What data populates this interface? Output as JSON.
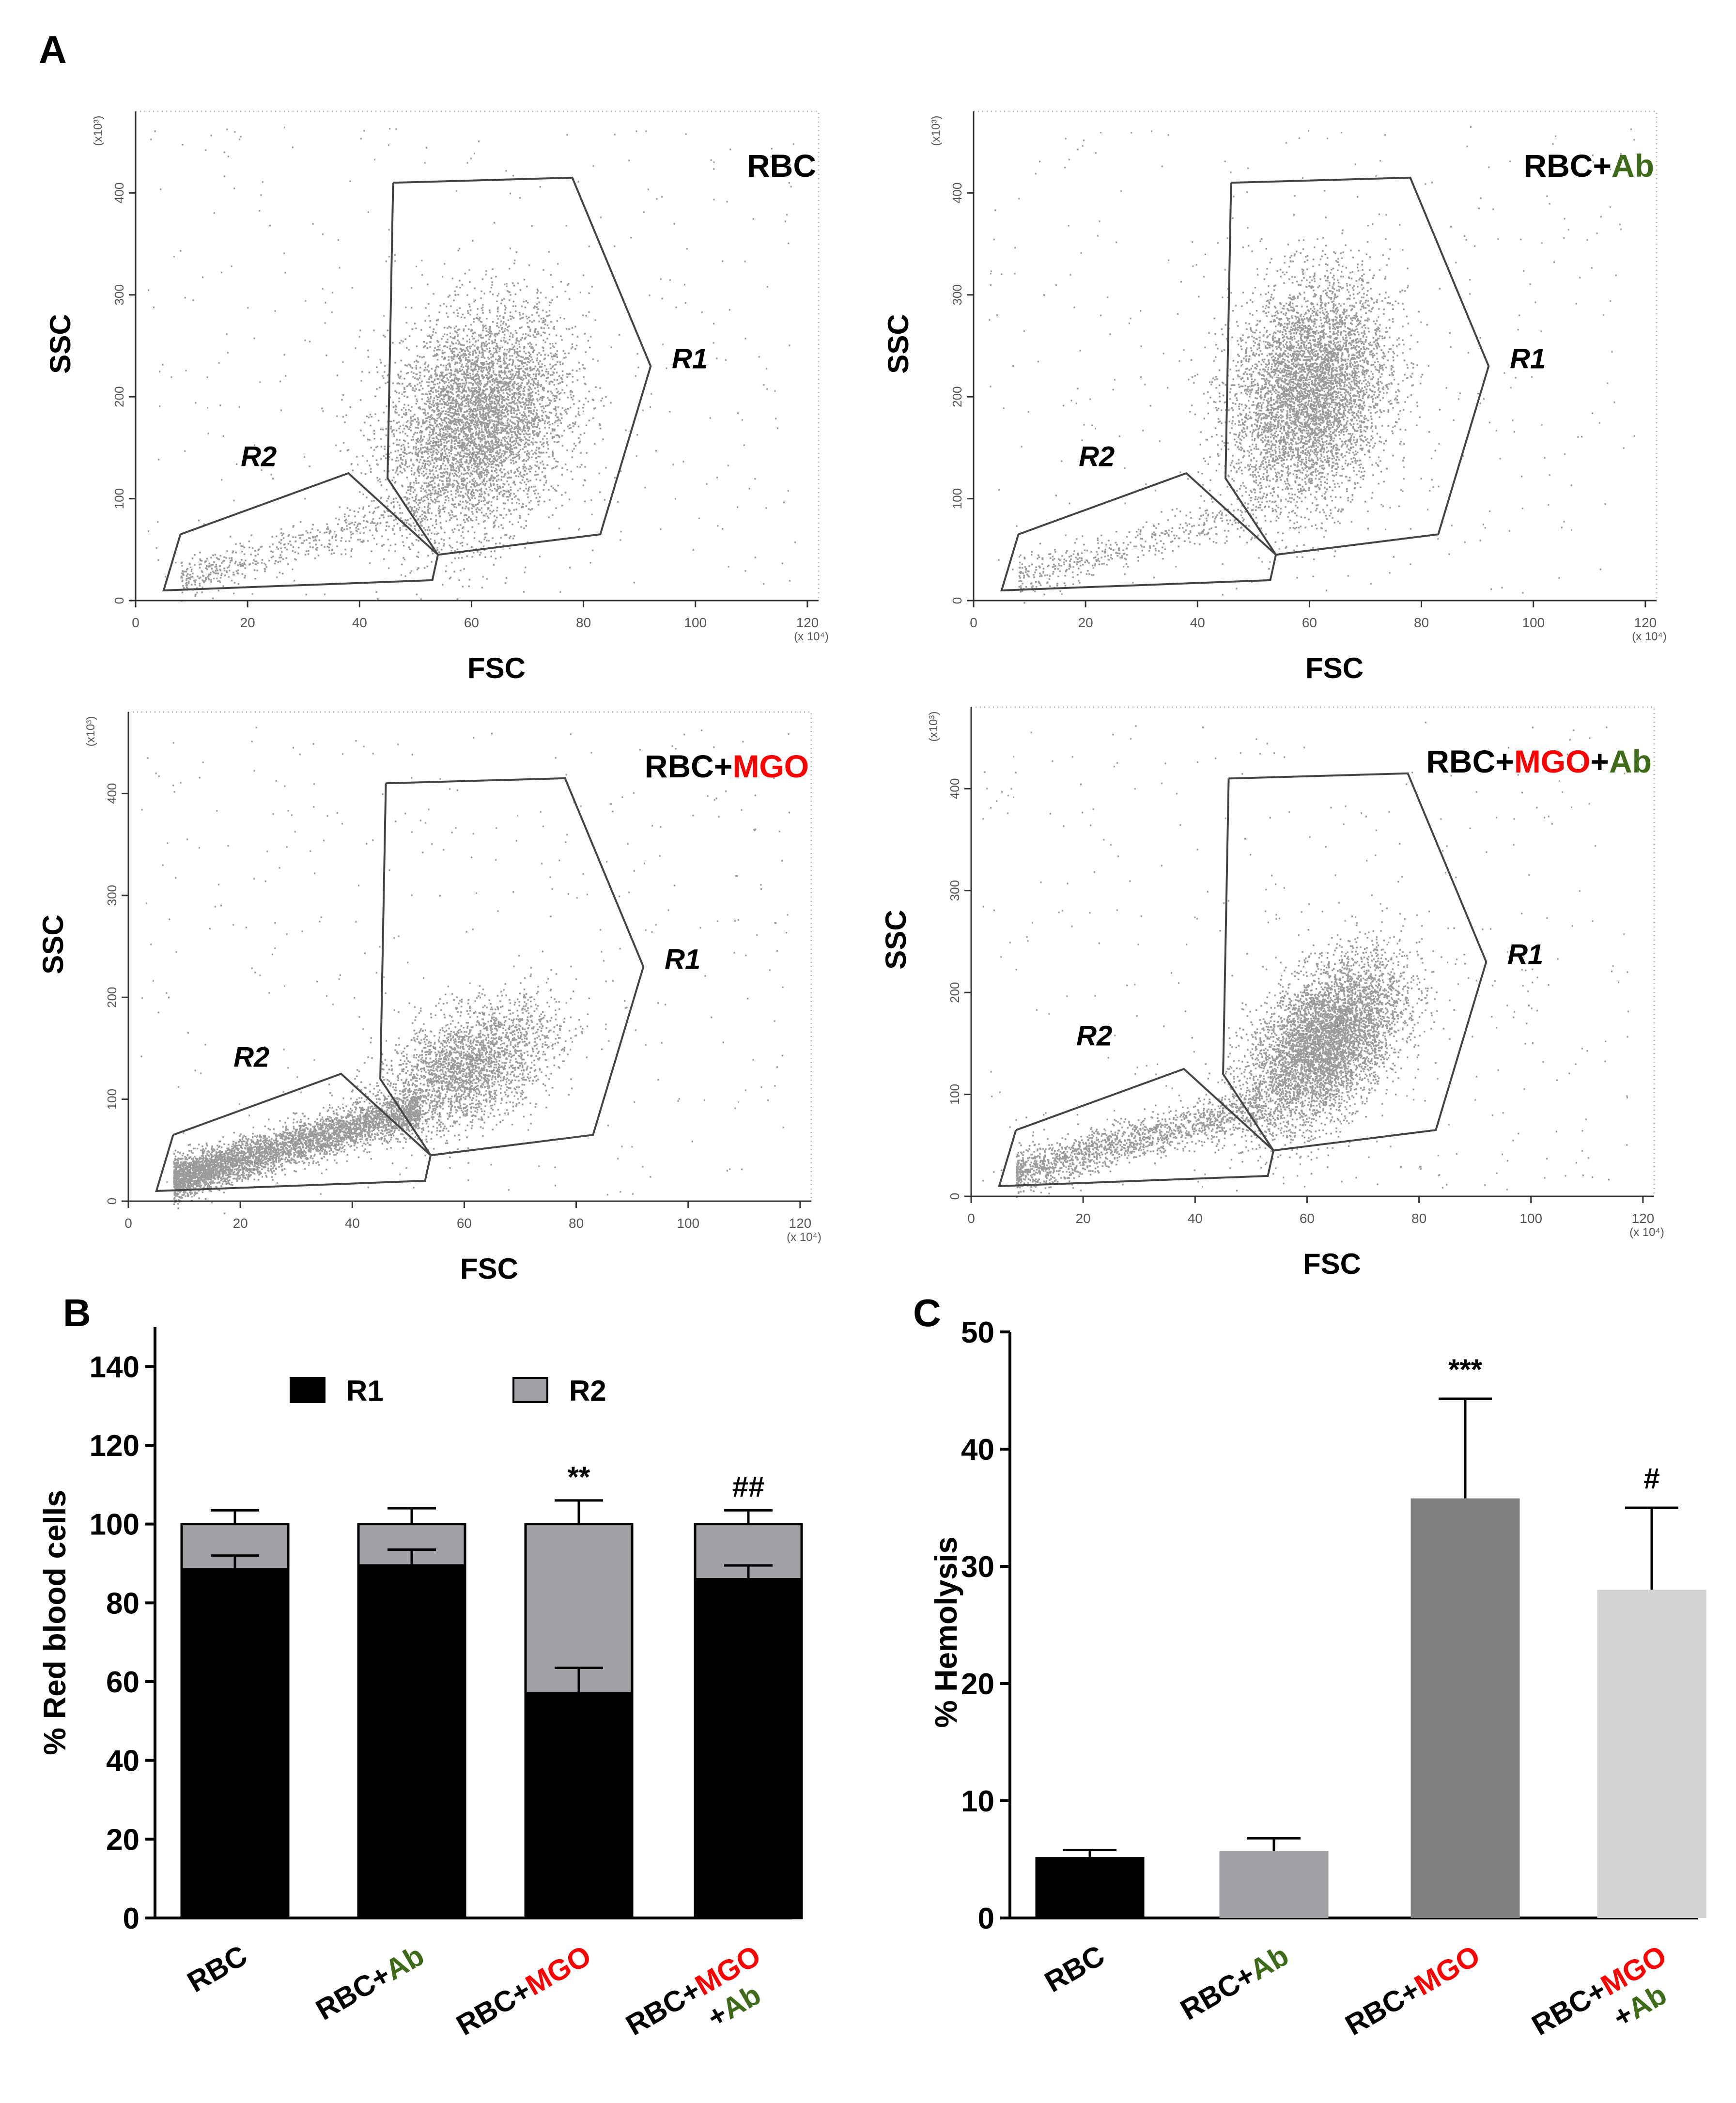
{
  "panel_labels": {
    "a": "A",
    "b": "B",
    "c": "C"
  },
  "colors": {
    "black": "#000000",
    "green": "#3d6b1a",
    "red": "#ff0000",
    "r2_gray": "#a0a0a6",
    "hemo_rbc": "#000000",
    "hemo_ab": "#a0a0a6",
    "hemo_mgo": "#808080",
    "hemo_mgo_ab": "#d3d3d3"
  },
  "chart_data": [
    {
      "id": "A",
      "type": "scatter",
      "description_type": "flow-cytometry",
      "xlabel": "FSC",
      "ylabel": "SSC",
      "x_multiplier": "(x 10⁴)",
      "y_multiplier": "(x10³)",
      "x_ticks": [
        0,
        20,
        40,
        60,
        80,
        100,
        120
      ],
      "y_ticks": [
        0,
        100,
        200,
        300,
        400
      ],
      "xlim": [
        0,
        122
      ],
      "ylim": [
        0,
        480
      ],
      "gate_labels": {
        "r1": "R1",
        "r2": "R2"
      },
      "gates": {
        "R1": [
          [
            46,
            410
          ],
          [
            78,
            415
          ],
          [
            92,
            230
          ],
          [
            83,
            65
          ],
          [
            54,
            45
          ],
          [
            45,
            120
          ],
          [
            46,
            410
          ]
        ],
        "R2": [
          [
            8,
            65
          ],
          [
            38,
            125
          ],
          [
            54,
            45
          ],
          [
            53,
            20
          ],
          [
            5,
            10
          ],
          [
            8,
            65
          ]
        ]
      },
      "plots": [
        {
          "title_parts": [
            {
              "text": "RBC",
              "color": "black"
            }
          ],
          "cluster": {
            "cx": 61,
            "cy": 175,
            "sx": 8,
            "sy": 55,
            "rho": 0.25,
            "n": 5200
          },
          "tail": {
            "n": 500
          }
        },
        {
          "title_parts": [
            {
              "text": "RBC+",
              "color": "black"
            },
            {
              "text": "Ab",
              "color": "green"
            }
          ],
          "cluster": {
            "cx": 60,
            "cy": 205,
            "sx": 7,
            "sy": 55,
            "rho": 0.2,
            "n": 5500
          },
          "tail": {
            "n": 450
          }
        },
        {
          "title_parts": [
            {
              "text": "RBC+",
              "color": "black"
            },
            {
              "text": "MGO",
              "color": "red"
            }
          ],
          "cluster": {
            "cx": 60,
            "cy": 130,
            "sx": 8,
            "sy": 32,
            "rho": 0.5,
            "n": 2600
          },
          "tail": {
            "n": 4200
          }
        },
        {
          "title_parts": [
            {
              "text": "RBC+",
              "color": "black"
            },
            {
              "text": "MGO",
              "color": "red"
            },
            {
              "text": "+",
              "color": "black"
            },
            {
              "text": "Ab",
              "color": "green"
            }
          ],
          "cluster": {
            "cx": 63,
            "cy": 150,
            "sx": 7,
            "sy": 42,
            "rho": 0.5,
            "n": 5200
          },
          "tail": {
            "n": 1600
          }
        }
      ]
    },
    {
      "id": "B",
      "type": "bar",
      "stacked": true,
      "ylabel": "% Red blood cells",
      "ylim": [
        0,
        150
      ],
      "y_ticks": [
        0,
        20,
        40,
        60,
        80,
        100,
        120,
        140
      ],
      "categories": [
        {
          "parts": [
            {
              "text": "RBC",
              "color": "black"
            }
          ]
        },
        {
          "parts": [
            {
              "text": "RBC+",
              "color": "black"
            },
            {
              "text": "Ab",
              "color": "green"
            }
          ]
        },
        {
          "parts": [
            {
              "text": "RBC+",
              "color": "black"
            },
            {
              "text": "MGO",
              "color": "red"
            }
          ]
        },
        {
          "line1": [
            {
              "text": "RBC+",
              "color": "black"
            },
            {
              "text": "MGO",
              "color": "red"
            }
          ],
          "line2": [
            {
              "text": "+",
              "color": "black"
            },
            {
              "text": "Ab",
              "color": "green"
            }
          ]
        }
      ],
      "series": [
        {
          "name": "R1",
          "color": "#000000",
          "values": [
            88.5,
            89.5,
            57,
            86
          ],
          "error": [
            3.5,
            4,
            6.5,
            3.5
          ]
        },
        {
          "name": "R2",
          "color": "#a0a0a6",
          "values": [
            11.5,
            10.5,
            43,
            14
          ],
          "error": [
            3.5,
            4,
            6,
            3.5
          ]
        }
      ],
      "annotations": [
        "",
        "",
        "**",
        "##"
      ],
      "legend_position": "top"
    },
    {
      "id": "C",
      "type": "bar",
      "ylabel": "% Hemolysis",
      "ylim": [
        0,
        50
      ],
      "y_ticks": [
        0,
        10,
        20,
        30,
        40,
        50
      ],
      "categories": [
        {
          "parts": [
            {
              "text": "RBC",
              "color": "black"
            }
          ]
        },
        {
          "parts": [
            {
              "text": "RBC+",
              "color": "black"
            },
            {
              "text": "Ab",
              "color": "green"
            }
          ]
        },
        {
          "parts": [
            {
              "text": "RBC+",
              "color": "black"
            },
            {
              "text": "MGO",
              "color": "red"
            }
          ]
        },
        {
          "line1": [
            {
              "text": "RBC+",
              "color": "black"
            },
            {
              "text": "MGO",
              "color": "red"
            }
          ],
          "line2": [
            {
              "text": "+",
              "color": "black"
            },
            {
              "text": "Ab",
              "color": "green"
            }
          ]
        }
      ],
      "values": [
        5.2,
        5.7,
        35.8,
        28
      ],
      "error": [
        0.6,
        1.1,
        8.5,
        7
      ],
      "bar_colors": [
        "#000000",
        "#a0a0a6",
        "#808080",
        "#d3d3d3"
      ],
      "annotations": [
        "",
        "",
        "***",
        "#"
      ]
    }
  ]
}
